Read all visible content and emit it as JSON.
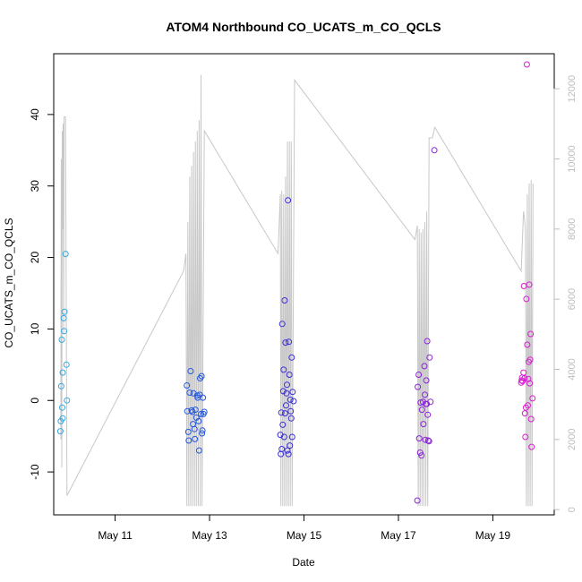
{
  "chart_data": {
    "type": "scatter",
    "title": "ATOM4 Northbound CO_UCATS_m_CO_QCLS",
    "xlabel": "Date",
    "ylabel": "CO_UCATS_m_CO_QCLS",
    "ylim": [
      -16,
      48.5
    ],
    "y_ticks": [
      -10,
      0,
      10,
      20,
      30,
      40
    ],
    "x_ticks": [
      {
        "x": 11,
        "label": "May 11"
      },
      {
        "x": 13,
        "label": "May 13"
      },
      {
        "x": 15,
        "label": "May 15"
      },
      {
        "x": 17,
        "label": "May 17"
      },
      {
        "x": 19,
        "label": "May 19"
      }
    ],
    "xlim": [
      9.7,
      20.3
    ],
    "y2lim": [
      -150,
      13000
    ],
    "y2_ticks": [
      0,
      2000,
      4000,
      6000,
      8000,
      10000,
      12000
    ],
    "altitude_color": "#c8c8c8",
    "series": [
      {
        "color": "#35a8e0",
        "points": [
          [
            9.84,
            -4.3
          ],
          [
            9.85,
            -2.9
          ],
          [
            9.86,
            2.0
          ],
          [
            9.87,
            8.5
          ],
          [
            9.88,
            -1.0
          ],
          [
            9.89,
            -2.5
          ],
          [
            9.89,
            3.9
          ],
          [
            9.91,
            11.5
          ],
          [
            9.92,
            9.7
          ],
          [
            9.93,
            12.4
          ],
          [
            9.95,
            20.5
          ],
          [
            9.97,
            5.0
          ],
          [
            9.98,
            0.0
          ]
        ]
      },
      {
        "color": "#2357e0",
        "points": [
          [
            12.52,
            2.1
          ],
          [
            12.53,
            -1.5
          ],
          [
            12.55,
            -4.4
          ],
          [
            12.56,
            -5.6
          ],
          [
            12.58,
            1.1
          ],
          [
            12.6,
            4.1
          ],
          [
            12.62,
            -1.4
          ],
          [
            12.64,
            -1.6
          ],
          [
            12.65,
            -3.3
          ],
          [
            12.66,
            1.0
          ],
          [
            12.68,
            -4.0
          ],
          [
            12.69,
            -5.4
          ],
          [
            12.7,
            -1.3
          ],
          [
            12.72,
            -2.4
          ],
          [
            12.74,
            0.7
          ],
          [
            12.75,
            0.4
          ],
          [
            12.77,
            -2.9
          ],
          [
            12.78,
            -7.0
          ],
          [
            12.79,
            0.8
          ],
          [
            12.8,
            3.1
          ],
          [
            12.82,
            -1.9
          ],
          [
            12.83,
            3.4
          ],
          [
            12.84,
            -4.6
          ],
          [
            12.85,
            -4.2
          ],
          [
            12.86,
            0.4
          ],
          [
            12.87,
            -1.9
          ],
          [
            12.89,
            -1.6
          ]
        ]
      },
      {
        "color": "#3a2fd6",
        "points": [
          [
            14.5,
            -4.8
          ],
          [
            14.51,
            -7.5
          ],
          [
            14.52,
            -1.7
          ],
          [
            14.53,
            -6.8
          ],
          [
            14.54,
            10.7
          ],
          [
            14.55,
            -3.4
          ],
          [
            14.56,
            1.3
          ],
          [
            14.57,
            4.3
          ],
          [
            14.58,
            -5.1
          ],
          [
            14.59,
            14.0
          ],
          [
            14.6,
            -1.8
          ],
          [
            14.61,
            8.1
          ],
          [
            14.62,
            -0.7
          ],
          [
            14.63,
            1.0
          ],
          [
            14.64,
            2.2
          ],
          [
            14.65,
            -7.0
          ],
          [
            14.66,
            28.0
          ],
          [
            14.67,
            -7.5
          ],
          [
            14.68,
            8.2
          ],
          [
            14.69,
            3.6
          ],
          [
            14.7,
            -6.3
          ],
          [
            14.71,
            0.1
          ],
          [
            14.72,
            -1.5
          ],
          [
            14.73,
            -2.5
          ],
          [
            14.74,
            6.0
          ],
          [
            14.75,
            -5.1
          ],
          [
            14.76,
            1.2
          ],
          [
            14.78,
            -0.1
          ]
        ]
      },
      {
        "color": "#8a23d8",
        "points": [
          [
            17.4,
            -14.0
          ],
          [
            17.41,
            1.9
          ],
          [
            17.43,
            3.6
          ],
          [
            17.44,
            -5.3
          ],
          [
            17.46,
            -7.3
          ],
          [
            17.47,
            -0.3
          ],
          [
            17.49,
            -7.7
          ],
          [
            17.5,
            -1.3
          ],
          [
            17.52,
            -0.2
          ],
          [
            17.53,
            -3.3
          ],
          [
            17.55,
            4.8
          ],
          [
            17.56,
            0.8
          ],
          [
            17.57,
            -5.5
          ],
          [
            17.58,
            -0.5
          ],
          [
            17.59,
            2.8
          ],
          [
            17.6,
            -0.5
          ],
          [
            17.61,
            8.3
          ],
          [
            17.62,
            -2.0
          ],
          [
            17.63,
            -5.6
          ],
          [
            17.65,
            -5.7
          ],
          [
            17.66,
            6.0
          ],
          [
            17.68,
            -0.2
          ],
          [
            17.76,
            35.0
          ]
        ]
      },
      {
        "color": "#d81fd0",
        "points": [
          [
            19.6,
            2.5
          ],
          [
            19.61,
            2.8
          ],
          [
            19.62,
            3.2
          ],
          [
            19.63,
            2.7
          ],
          [
            19.65,
            3.9
          ],
          [
            19.66,
            16.0
          ],
          [
            19.67,
            3.1
          ],
          [
            19.68,
            -1.8
          ],
          [
            19.69,
            -5.1
          ],
          [
            19.7,
            -1.0
          ],
          [
            19.71,
            14.2
          ],
          [
            19.72,
            47.0
          ],
          [
            19.73,
            7.8
          ],
          [
            19.74,
            -0.7
          ],
          [
            19.75,
            3.0
          ],
          [
            19.76,
            5.4
          ],
          [
            19.77,
            16.2
          ],
          [
            19.78,
            2.4
          ],
          [
            19.79,
            5.7
          ],
          [
            19.8,
            9.3
          ],
          [
            19.81,
            -2.6
          ],
          [
            19.82,
            -6.5
          ],
          [
            19.84,
            0.3
          ]
        ]
      }
    ],
    "altitude_trace": [
      [
        9.85,
        2000
      ],
      [
        9.86,
        10000
      ],
      [
        9.87,
        1200
      ],
      [
        9.88,
        10800
      ],
      [
        9.89,
        8000
      ],
      [
        9.9,
        11000
      ],
      [
        9.91,
        5000
      ],
      [
        9.92,
        11200
      ],
      [
        9.95,
        11200
      ],
      [
        9.98,
        400
      ],
      [
        12.45,
        6800
      ],
      [
        12.5,
        7300
      ],
      [
        12.52,
        100
      ],
      [
        12.54,
        8200
      ],
      [
        12.56,
        100
      ],
      [
        12.58,
        9500
      ],
      [
        12.6,
        100
      ],
      [
        12.62,
        9800
      ],
      [
        12.64,
        100
      ],
      [
        12.66,
        10200
      ],
      [
        12.68,
        100
      ],
      [
        12.7,
        10500
      ],
      [
        12.72,
        100
      ],
      [
        12.74,
        10800
      ],
      [
        12.76,
        100
      ],
      [
        12.78,
        11100
      ],
      [
        12.8,
        100
      ],
      [
        12.82,
        12400
      ],
      [
        12.84,
        100
      ],
      [
        12.89,
        10800
      ],
      [
        14.45,
        7300
      ],
      [
        14.5,
        9000
      ],
      [
        14.51,
        100
      ],
      [
        14.53,
        9100
      ],
      [
        14.55,
        100
      ],
      [
        14.57,
        9000
      ],
      [
        14.59,
        100
      ],
      [
        14.61,
        9500
      ],
      [
        14.63,
        100
      ],
      [
        14.65,
        10500
      ],
      [
        14.67,
        100
      ],
      [
        14.69,
        10500
      ],
      [
        14.71,
        100
      ],
      [
        14.73,
        10500
      ],
      [
        14.75,
        100
      ],
      [
        14.8,
        12250
      ],
      [
        17.35,
        7700
      ],
      [
        17.4,
        8100
      ],
      [
        17.42,
        100
      ],
      [
        17.44,
        8000
      ],
      [
        17.46,
        100
      ],
      [
        17.48,
        7900
      ],
      [
        17.5,
        100
      ],
      [
        17.52,
        8000
      ],
      [
        17.54,
        100
      ],
      [
        17.56,
        8200
      ],
      [
        17.58,
        100
      ],
      [
        17.6,
        8500
      ],
      [
        17.62,
        100
      ],
      [
        17.65,
        10600
      ],
      [
        17.72,
        10600
      ],
      [
        17.77,
        10900
      ],
      [
        19.6,
        6800
      ],
      [
        19.65,
        8500
      ],
      [
        19.67,
        8300
      ],
      [
        19.69,
        8000
      ],
      [
        19.71,
        100
      ],
      [
        19.73,
        9000
      ],
      [
        19.75,
        100
      ],
      [
        19.77,
        9300
      ],
      [
        19.79,
        100
      ],
      [
        19.81,
        9400
      ],
      [
        19.83,
        100
      ],
      [
        19.85,
        9300
      ]
    ]
  }
}
